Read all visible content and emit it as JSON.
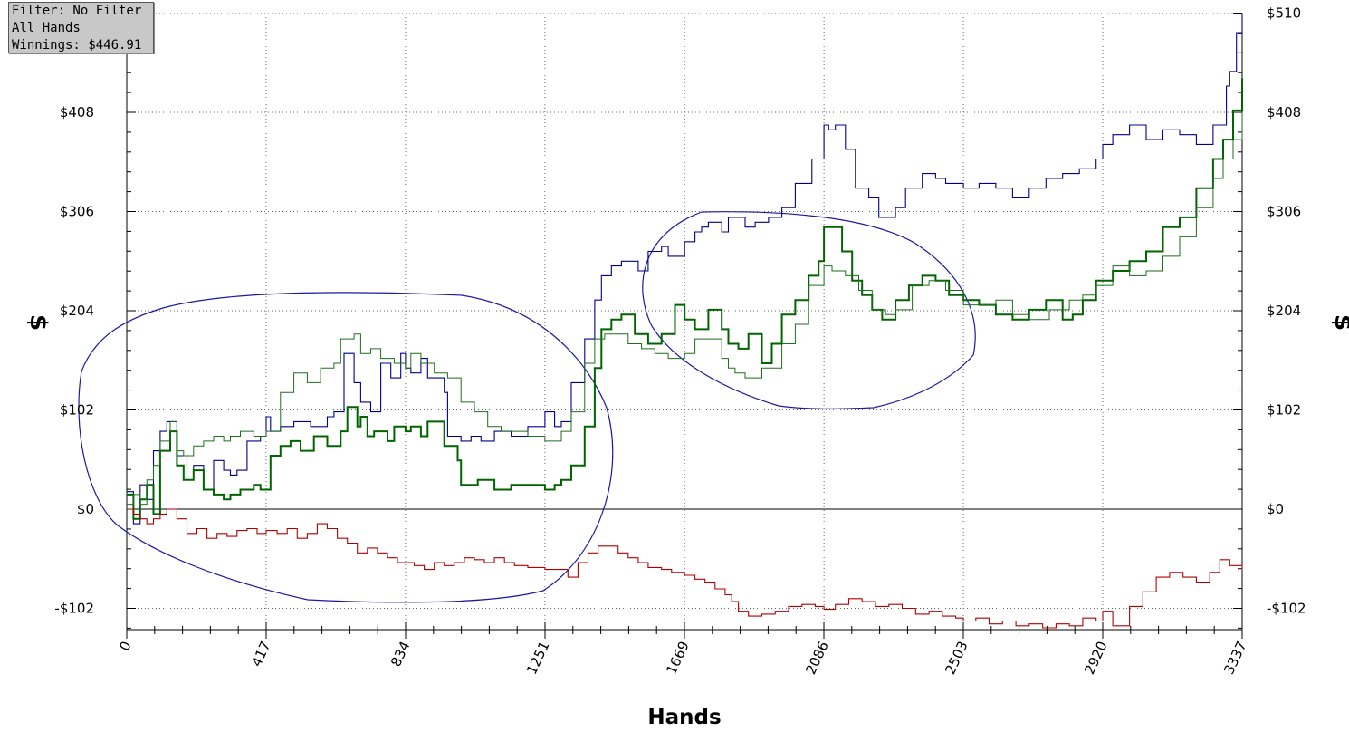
{
  "info_box": {
    "filter": "Filter: No Filter",
    "hands": "All Hands",
    "winnings": "Winnings: $446.91"
  },
  "chart_data": {
    "type": "line",
    "xlabel": "Hands",
    "ylabel": "$",
    "xlim": [
      0,
      3337
    ],
    "ylim": [
      -125,
      510
    ],
    "x_ticks": [
      0,
      417,
      834,
      1251,
      1669,
      2086,
      2503,
      2920,
      3337
    ],
    "y_ticks": [
      {
        "value": -102,
        "label": "-$102"
      },
      {
        "value": 0,
        "label": "$0"
      },
      {
        "value": 102,
        "label": "$102"
      },
      {
        "value": 204,
        "label": "$204"
      },
      {
        "value": 306,
        "label": "$306"
      },
      {
        "value": 408,
        "label": "$408"
      }
    ],
    "right_extra_tick": {
      "value": 510,
      "label": "$510"
    },
    "grid": true,
    "colors": {
      "blue": "#00008b",
      "green_thick": "#006400",
      "green_thin": "#1e6e1e",
      "red": "#b00000",
      "zero_line": "#000000",
      "ellipse": "#1a1aa0"
    },
    "series": [
      {
        "x": [
          0,
          20,
          40,
          60,
          80,
          100,
          120,
          150,
          180,
          200,
          230,
          260,
          290,
          310,
          330,
          360,
          400,
          417,
          430,
          460,
          500,
          550,
          600,
          620,
          650,
          680,
          700,
          730,
          760,
          790,
          820,
          834,
          850,
          880,
          900,
          950,
          960,
          1000,
          1030,
          1060,
          1100,
          1150,
          1200,
          1251,
          1280,
          1300,
          1330,
          1370,
          1400,
          1420,
          1450,
          1480,
          1530,
          1560,
          1600,
          1620,
          1669,
          1700,
          1720,
          1740,
          1780,
          1800,
          1850,
          1880,
          1920,
          1960,
          2000,
          2050,
          2086,
          2100,
          2120,
          2150,
          2180,
          2220,
          2250,
          2300,
          2330,
          2380,
          2420,
          2450,
          2503,
          2550,
          2600,
          2650,
          2700,
          2750,
          2800,
          2850,
          2900,
          2920,
          2950,
          3000,
          3050,
          3100,
          3150,
          3200,
          3250,
          3290,
          3300,
          3320,
          3337
        ],
        "values": [
          18,
          -15,
          25,
          10,
          60,
          80,
          90,
          55,
          30,
          45,
          20,
          50,
          40,
          35,
          40,
          70,
          75,
          95,
          80,
          85,
          90,
          85,
          95,
          100,
          160,
          130,
          110,
          100,
          150,
          135,
          160,
          145,
          140,
          155,
          135,
          120,
          75,
          70,
          75,
          70,
          80,
          75,
          85,
          100,
          85,
          90,
          130,
          175,
          215,
          240,
          250,
          255,
          245,
          265,
          270,
          260,
          275,
          285,
          290,
          295,
          285,
          300,
          290,
          295,
          300,
          310,
          335,
          360,
          395,
          390,
          395,
          370,
          330,
          320,
          300,
          310,
          330,
          345,
          340,
          335,
          330,
          335,
          330,
          320,
          330,
          340,
          345,
          350,
          360,
          375,
          385,
          395,
          380,
          390,
          385,
          375,
          395,
          435,
          450,
          490,
          510
        ]
      },
      {
        "x": [
          0,
          20,
          40,
          60,
          80,
          100,
          130,
          150,
          170,
          200,
          230,
          260,
          290,
          310,
          340,
          380,
          400,
          430,
          460,
          490,
          520,
          560,
          600,
          640,
          660,
          690,
          700,
          720,
          740,
          780,
          800,
          834,
          850,
          880,
          900,
          950,
          990,
          1000,
          1050,
          1100,
          1150,
          1200,
          1251,
          1280,
          1300,
          1330,
          1370,
          1400,
          1420,
          1450,
          1480,
          1520,
          1560,
          1600,
          1640,
          1669,
          1700,
          1740,
          1780,
          1800,
          1830,
          1860,
          1900,
          1930,
          1960,
          2000,
          2040,
          2070,
          2086,
          2110,
          2140,
          2170,
          2200,
          2230,
          2260,
          2300,
          2340,
          2380,
          2420,
          2460,
          2503,
          2550,
          2600,
          2650,
          2700,
          2750,
          2800,
          2830,
          2860,
          2900,
          2950,
          3000,
          3050,
          3100,
          3150,
          3200,
          3250,
          3280,
          3310,
          3337
        ],
        "values": [
          15,
          -10,
          10,
          25,
          -5,
          60,
          80,
          45,
          30,
          40,
          20,
          15,
          10,
          15,
          20,
          25,
          20,
          55,
          65,
          70,
          60,
          75,
          65,
          80,
          105,
          85,
          95,
          75,
          80,
          70,
          85,
          80,
          85,
          75,
          90,
          65,
          50,
          25,
          30,
          20,
          25,
          25,
          20,
          25,
          30,
          45,
          85,
          145,
          185,
          195,
          200,
          180,
          170,
          180,
          210,
          195,
          185,
          205,
          185,
          170,
          165,
          180,
          150,
          170,
          200,
          215,
          240,
          255,
          290,
          290,
          265,
          235,
          220,
          205,
          195,
          215,
          230,
          240,
          235,
          220,
          215,
          210,
          200,
          195,
          205,
          215,
          195,
          200,
          215,
          235,
          245,
          255,
          265,
          290,
          300,
          330,
          360,
          380,
          410,
          443
        ]
      },
      {
        "x": [
          0,
          20,
          40,
          60,
          80,
          100,
          130,
          150,
          170,
          200,
          230,
          260,
          290,
          310,
          340,
          380,
          417,
          460,
          500,
          540,
          580,
          620,
          640,
          680,
          700,
          730,
          760,
          800,
          834,
          850,
          880,
          920,
          960,
          1000,
          1040,
          1080,
          1120,
          1160,
          1200,
          1251,
          1280,
          1300,
          1330,
          1370,
          1400,
          1430,
          1460,
          1500,
          1540,
          1580,
          1620,
          1669,
          1700,
          1740,
          1780,
          1800,
          1820,
          1850,
          1900,
          1960,
          2000,
          2040,
          2086,
          2110,
          2150,
          2190,
          2230,
          2270,
          2300,
          2350,
          2400,
          2450,
          2503,
          2550,
          2600,
          2650,
          2700,
          2760,
          2820,
          2860,
          2900,
          2950,
          3000,
          3050,
          3100,
          3150,
          3200,
          3250,
          3280,
          3310,
          3337
        ],
        "values": [
          5,
          15,
          5,
          30,
          45,
          70,
          90,
          60,
          55,
          65,
          70,
          75,
          70,
          75,
          80,
          75,
          80,
          120,
          140,
          130,
          145,
          150,
          175,
          180,
          160,
          165,
          155,
          150,
          145,
          160,
          150,
          140,
          135,
          110,
          100,
          85,
          80,
          80,
          75,
          70,
          70,
          80,
          100,
          150,
          175,
          180,
          180,
          170,
          165,
          160,
          155,
          160,
          175,
          175,
          155,
          145,
          140,
          135,
          145,
          170,
          190,
          230,
          250,
          245,
          240,
          225,
          205,
          200,
          205,
          230,
          235,
          225,
          210,
          210,
          215,
          200,
          195,
          205,
          215,
          220,
          230,
          250,
          240,
          245,
          260,
          280,
          310,
          340,
          360,
          380,
          408
        ]
      },
      {
        "x": [
          0,
          20,
          40,
          60,
          80,
          100,
          120,
          150,
          180,
          210,
          240,
          270,
          300,
          330,
          360,
          390,
          417,
          450,
          480,
          510,
          540,
          570,
          600,
          630,
          660,
          690,
          720,
          750,
          780,
          810,
          834,
          860,
          890,
          920,
          950,
          980,
          1010,
          1040,
          1070,
          1100,
          1130,
          1160,
          1200,
          1251,
          1280,
          1320,
          1350,
          1380,
          1410,
          1440,
          1470,
          1500,
          1530,
          1560,
          1600,
          1630,
          1669,
          1700,
          1730,
          1760,
          1790,
          1810,
          1830,
          1860,
          1900,
          1940,
          1980,
          2020,
          2060,
          2086,
          2120,
          2160,
          2200,
          2240,
          2280,
          2320,
          2360,
          2400,
          2440,
          2480,
          2503,
          2540,
          2580,
          2620,
          2660,
          2700,
          2740,
          2780,
          2820,
          2860,
          2900,
          2920,
          2950,
          3000,
          3040,
          3080,
          3120,
          3160,
          3200,
          3240,
          3270,
          3300,
          3337
        ],
        "values": [
          0,
          -5,
          -10,
          -15,
          -10,
          -5,
          0,
          -10,
          -25,
          -20,
          -30,
          -25,
          -28,
          -22,
          -20,
          -25,
          -22,
          -25,
          -20,
          -30,
          -25,
          -15,
          -20,
          -30,
          -35,
          -45,
          -40,
          -45,
          -50,
          -55,
          -55,
          -58,
          -62,
          -55,
          -58,
          -55,
          -50,
          -52,
          -55,
          -50,
          -55,
          -58,
          -60,
          -62,
          -62,
          -70,
          -55,
          -45,
          -38,
          -38,
          -45,
          -50,
          -55,
          -60,
          -62,
          -65,
          -68,
          -72,
          -75,
          -82,
          -88,
          -95,
          -105,
          -110,
          -108,
          -105,
          -100,
          -98,
          -100,
          -103,
          -98,
          -92,
          -95,
          -100,
          -98,
          -102,
          -108,
          -105,
          -110,
          -112,
          -115,
          -112,
          -118,
          -115,
          -120,
          -118,
          -122,
          -118,
          -120,
          -112,
          -115,
          -105,
          -120,
          -100,
          -85,
          -70,
          -65,
          -70,
          -75,
          -65,
          -52,
          -58,
          -62
        ]
      }
    ]
  }
}
